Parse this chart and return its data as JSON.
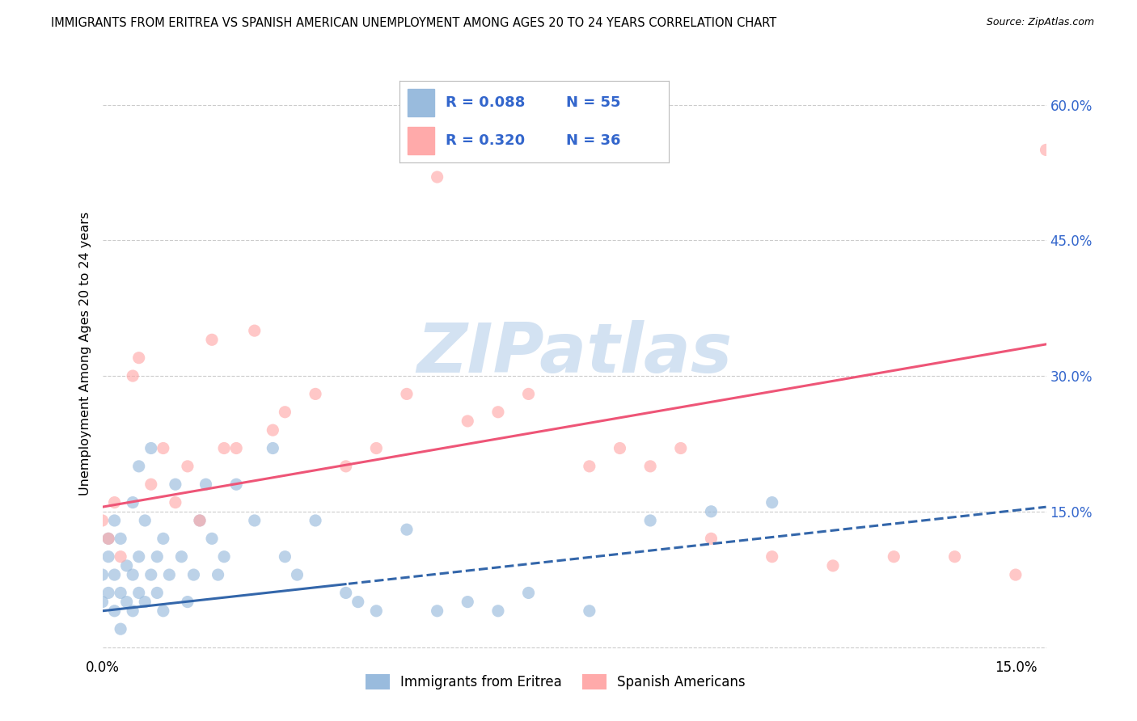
{
  "title": "IMMIGRANTS FROM ERITREA VS SPANISH AMERICAN UNEMPLOYMENT AMONG AGES 20 TO 24 YEARS CORRELATION CHART",
  "source": "Source: ZipAtlas.com",
  "ylabel": "Unemployment Among Ages 20 to 24 years",
  "xlim": [
    0.0,
    0.155
  ],
  "ylim": [
    -0.01,
    0.66
  ],
  "xtick_vals": [
    0.0,
    0.15
  ],
  "xtick_labels": [
    "0.0%",
    "15.0%"
  ],
  "ytick_right_vals": [
    0.15,
    0.3,
    0.45,
    0.6
  ],
  "ytick_right_labels": [
    "15.0%",
    "30.0%",
    "45.0%",
    "60.0%"
  ],
  "color_blue": "#99BBDD",
  "color_pink": "#FFAAAA",
  "color_blue_line": "#3366AA",
  "color_pink_line": "#EE5577",
  "legend_color": "#3366CC",
  "grid_color": "#cccccc",
  "watermark_color": "#ccddf0",
  "bottom_legend_1": "Immigrants from Eritrea",
  "bottom_legend_2": "Spanish Americans",
  "eritrea_x": [
    0.0,
    0.0,
    0.001,
    0.001,
    0.001,
    0.002,
    0.002,
    0.002,
    0.003,
    0.003,
    0.003,
    0.004,
    0.004,
    0.005,
    0.005,
    0.005,
    0.006,
    0.006,
    0.006,
    0.007,
    0.007,
    0.008,
    0.008,
    0.009,
    0.009,
    0.01,
    0.01,
    0.011,
    0.012,
    0.013,
    0.014,
    0.015,
    0.016,
    0.017,
    0.018,
    0.019,
    0.02,
    0.022,
    0.025,
    0.028,
    0.03,
    0.032,
    0.035,
    0.04,
    0.042,
    0.045,
    0.05,
    0.055,
    0.06,
    0.065,
    0.07,
    0.08,
    0.09,
    0.1,
    0.11
  ],
  "eritrea_y": [
    0.05,
    0.08,
    0.06,
    0.1,
    0.12,
    0.04,
    0.08,
    0.14,
    0.02,
    0.06,
    0.12,
    0.05,
    0.09,
    0.04,
    0.08,
    0.16,
    0.06,
    0.1,
    0.2,
    0.05,
    0.14,
    0.08,
    0.22,
    0.06,
    0.1,
    0.04,
    0.12,
    0.08,
    0.18,
    0.1,
    0.05,
    0.08,
    0.14,
    0.18,
    0.12,
    0.08,
    0.1,
    0.18,
    0.14,
    0.22,
    0.1,
    0.08,
    0.14,
    0.06,
    0.05,
    0.04,
    0.13,
    0.04,
    0.05,
    0.04,
    0.06,
    0.04,
    0.14,
    0.15,
    0.16
  ],
  "spanish_x": [
    0.0,
    0.001,
    0.002,
    0.003,
    0.005,
    0.006,
    0.008,
    0.01,
    0.012,
    0.014,
    0.016,
    0.018,
    0.02,
    0.022,
    0.025,
    0.028,
    0.03,
    0.035,
    0.04,
    0.045,
    0.05,
    0.055,
    0.06,
    0.065,
    0.07,
    0.08,
    0.085,
    0.09,
    0.095,
    0.1,
    0.11,
    0.12,
    0.13,
    0.14,
    0.15,
    0.155
  ],
  "spanish_y": [
    0.14,
    0.12,
    0.16,
    0.1,
    0.3,
    0.32,
    0.18,
    0.22,
    0.16,
    0.2,
    0.14,
    0.34,
    0.22,
    0.22,
    0.35,
    0.24,
    0.26,
    0.28,
    0.2,
    0.22,
    0.28,
    0.52,
    0.25,
    0.26,
    0.28,
    0.2,
    0.22,
    0.2,
    0.22,
    0.12,
    0.1,
    0.09,
    0.1,
    0.1,
    0.08,
    0.55
  ],
  "blue_line_x0": 0.0,
  "blue_line_x_solid_end": 0.04,
  "blue_line_x1": 0.155,
  "blue_line_y0": 0.04,
  "blue_line_y1": 0.155,
  "pink_line_x0": 0.0,
  "pink_line_x1": 0.155,
  "pink_line_y0": 0.155,
  "pink_line_y1": 0.335
}
